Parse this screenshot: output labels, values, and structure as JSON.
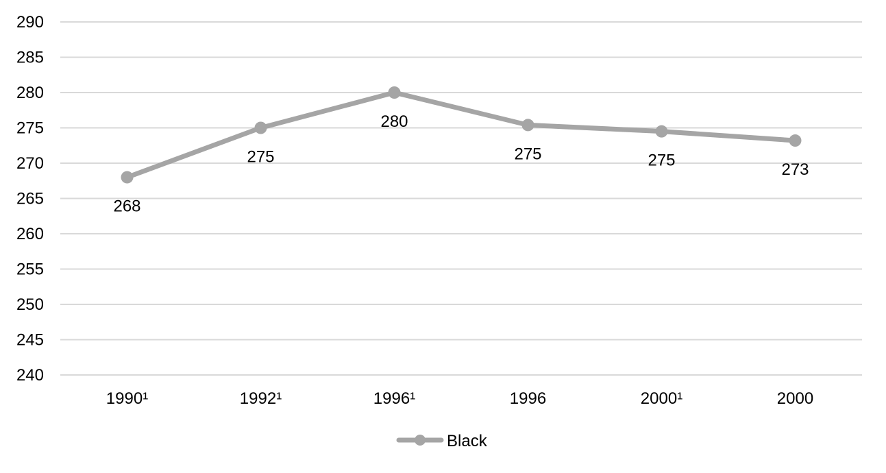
{
  "chart_data": {
    "type": "line",
    "title": "",
    "xlabel": "",
    "ylabel": "",
    "categories": [
      "1990¹",
      "1992¹",
      "1996¹",
      "1996",
      "2000¹",
      "2000"
    ],
    "series": [
      {
        "name": "Black",
        "values": [
          268,
          275,
          280,
          275.4,
          274.5,
          273.2
        ],
        "data_labels": [
          "268",
          "275",
          "280",
          "275",
          "275",
          "273"
        ],
        "color": "#a5a5a5"
      }
    ],
    "ylim": [
      240,
      290
    ],
    "yticks": [
      240,
      245,
      250,
      255,
      260,
      265,
      270,
      275,
      280,
      285,
      290
    ],
    "ytick_labels": [
      "240",
      "245",
      "250",
      "255",
      "260",
      "265",
      "270",
      "275",
      "280",
      "285",
      "290"
    ],
    "grid": true,
    "gridline_color": "#d9d9d9",
    "legend_position": "bottom"
  }
}
